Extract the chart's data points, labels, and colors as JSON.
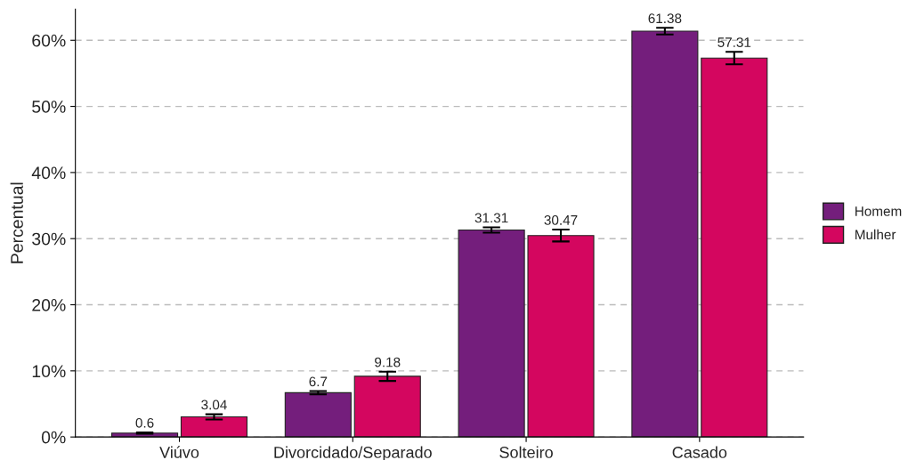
{
  "chart_data": {
    "type": "bar",
    "ylabel": "Percentual",
    "categories": [
      "Viúvo",
      "Divorcidado/Separado",
      "Solteiro",
      "Casado"
    ],
    "series": [
      {
        "name": "Homem",
        "color": "#741e7c",
        "values": [
          0.6,
          6.7,
          31.31,
          61.38
        ],
        "errors": [
          0.1,
          0.25,
          0.4,
          0.5
        ]
      },
      {
        "name": "Mulher",
        "color": "#d4065f",
        "values": [
          3.04,
          9.18,
          30.47,
          57.31
        ],
        "errors": [
          0.4,
          0.7,
          0.9,
          0.95
        ]
      }
    ],
    "ylim": [
      0,
      64.7
    ],
    "yticks": [
      {
        "value": 0,
        "label": "0%"
      },
      {
        "value": 10,
        "label": "10%"
      },
      {
        "value": 20,
        "label": "20%"
      },
      {
        "value": 30,
        "label": "30%"
      },
      {
        "value": 40,
        "label": "40%"
      },
      {
        "value": 50,
        "label": "50%"
      },
      {
        "value": 60,
        "label": "60%"
      }
    ],
    "grid": "y",
    "legend": "right",
    "data_labels": true
  }
}
